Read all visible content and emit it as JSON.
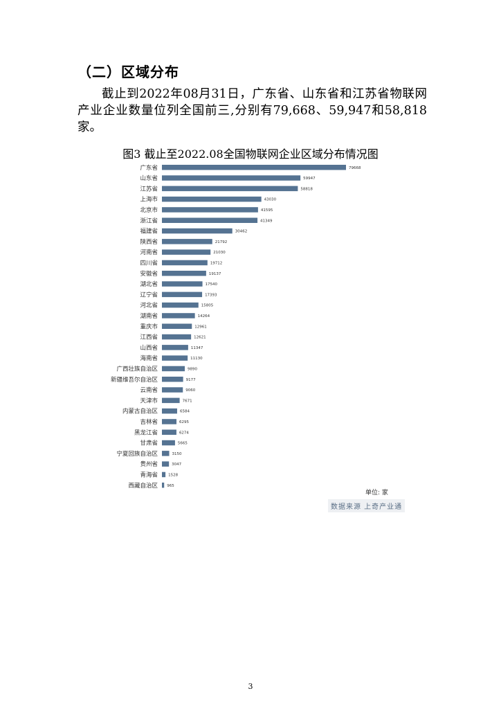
{
  "section_heading": "（二）区域分布",
  "paragraph": "截止到2022年08月31日，广东省、山东省和江苏省物联网产业企业数量位列全国前三,分别有79,668、59,947和58,818家。",
  "figure_title": "图3 截止至2022.08全国物联网企业区域分布情况图",
  "unit_label": "单位: 家",
  "source_label": "数据来源 上奇产业通",
  "page_number": "3",
  "colors": {
    "bar": "#557392"
  },
  "chart_data": {
    "type": "bar",
    "orientation": "horizontal",
    "title": "图3 截止至2022.08全国物联网企业区域分布情况图",
    "xlabel": "",
    "ylabel": "",
    "unit": "单位: 家",
    "grid": false,
    "xlim": [
      0,
      79668
    ],
    "categories": [
      "广东省",
      "山东省",
      "江苏省",
      "上海市",
      "北京市",
      "浙江省",
      "福建省",
      "陕西省",
      "河南省",
      "四川省",
      "安徽省",
      "湖北省",
      "辽宁省",
      "河北省",
      "湖南省",
      "重庆市",
      "江西省",
      "山西省",
      "海南省",
      "广西壮族自治区",
      "新疆维吾尔自治区",
      "云南省",
      "天津市",
      "内蒙古自治区",
      "吉林省",
      "黑龙江省",
      "甘肃省",
      "宁夏回族自治区",
      "贵州省",
      "青海省",
      "西藏自治区"
    ],
    "values": [
      79668,
      59947,
      58818,
      43030,
      41595,
      41349,
      30462,
      21792,
      21030,
      19712,
      19137,
      17540,
      17393,
      15805,
      14264,
      12961,
      12621,
      11347,
      11130,
      9890,
      9177,
      9060,
      7671,
      6584,
      6295,
      6274,
      5665,
      3150,
      3047,
      1528,
      965
    ]
  }
}
